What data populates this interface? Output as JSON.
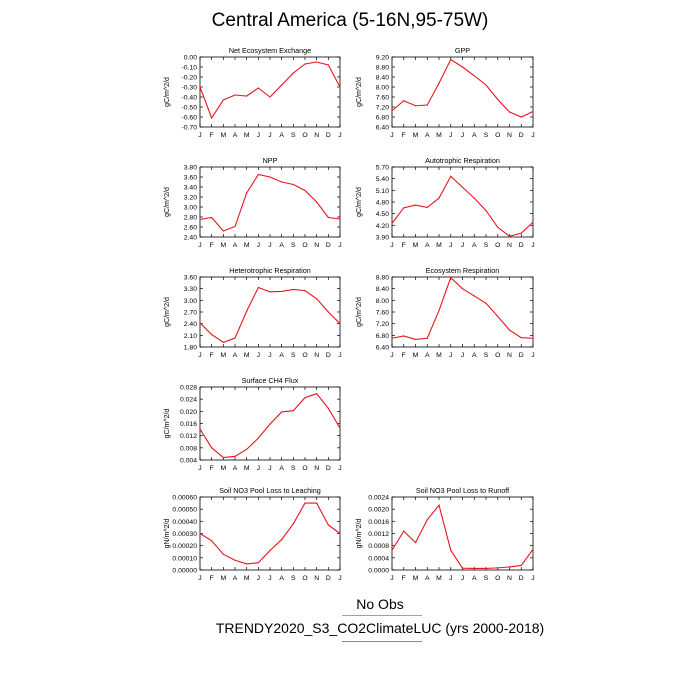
{
  "page_title": "Central America (5-16N,95-75W)",
  "months": [
    "J",
    "F",
    "M",
    "A",
    "M",
    "J",
    "J",
    "A",
    "S",
    "O",
    "N",
    "D",
    "J"
  ],
  "line_color": "#e8141e",
  "legend": {
    "obs_label": "No Obs",
    "model_label": "TRENDY2020_S3_CO2ClimateLUC (yrs 2000-2018)",
    "obs_color": "#8aa0d8",
    "model_color": "#e06a6a"
  },
  "chart_data": [
    {
      "type": "line",
      "title": "Net Ecosystem Exchange",
      "ylabel": "gC/m^2/d",
      "ylim": [
        -0.7,
        0.0
      ],
      "yticks": [
        0.0,
        -0.1,
        -0.2,
        -0.3,
        -0.4,
        -0.5,
        -0.6,
        -0.7
      ],
      "ytick_labels": [
        "0.00",
        "-0.10",
        "-0.20",
        "-0.30",
        "-0.40",
        "-0.50",
        "-0.60",
        "-0.70"
      ],
      "values": [
        -0.3,
        -0.61,
        -0.43,
        -0.38,
        -0.39,
        -0.31,
        -0.4,
        -0.28,
        -0.16,
        -0.07,
        -0.05,
        -0.08,
        -0.3
      ]
    },
    {
      "type": "line",
      "title": "GPP",
      "ylabel": "gC/m^2/d",
      "ylim": [
        6.4,
        9.2
      ],
      "yticks": [
        9.2,
        8.8,
        8.4,
        8.0,
        7.6,
        7.2,
        6.8,
        6.4
      ],
      "ytick_labels": [
        "9.20",
        "8.80",
        "8.40",
        "8.00",
        "7.60",
        "7.20",
        "6.80",
        "6.40"
      ],
      "values": [
        7.05,
        7.45,
        7.25,
        7.28,
        8.15,
        9.1,
        8.8,
        8.45,
        8.08,
        7.5,
        7.0,
        6.8,
        7.02
      ]
    },
    {
      "type": "line",
      "title": "NPP",
      "ylabel": "gC/m^2/d",
      "ylim": [
        2.4,
        3.8
      ],
      "yticks": [
        3.8,
        3.6,
        3.4,
        3.2,
        3.0,
        2.8,
        2.6,
        2.4
      ],
      "ytick_labels": [
        "3.80",
        "3.60",
        "3.40",
        "3.20",
        "3.00",
        "2.80",
        "2.60",
        "2.40"
      ],
      "values": [
        2.75,
        2.79,
        2.52,
        2.61,
        3.28,
        3.65,
        3.6,
        3.5,
        3.45,
        3.33,
        3.1,
        2.79,
        2.76
      ]
    },
    {
      "type": "line",
      "title": "Autotrophic Respiration",
      "ylabel": "gC/m^2/d",
      "ylim": [
        3.9,
        5.7
      ],
      "yticks": [
        5.7,
        5.4,
        5.1,
        4.8,
        4.5,
        4.2,
        3.9
      ],
      "ytick_labels": [
        "5.70",
        "5.40",
        "5.10",
        "4.80",
        "4.50",
        "4.20",
        "3.90"
      ],
      "values": [
        4.25,
        4.65,
        4.72,
        4.66,
        4.9,
        5.46,
        5.18,
        4.9,
        4.58,
        4.15,
        3.92,
        4.0,
        4.28
      ]
    },
    {
      "type": "line",
      "title": "Heterotrophic Respiration",
      "ylabel": "gC/m^2/d",
      "ylim": [
        1.8,
        3.6
      ],
      "yticks": [
        3.6,
        3.3,
        3.0,
        2.7,
        2.4,
        2.1,
        1.8
      ],
      "ytick_labels": [
        "3.60",
        "3.30",
        "3.00",
        "2.70",
        "2.40",
        "2.10",
        "1.80"
      ],
      "values": [
        2.42,
        2.12,
        1.92,
        2.03,
        2.72,
        3.33,
        3.22,
        3.23,
        3.28,
        3.25,
        3.04,
        2.7,
        2.4
      ]
    },
    {
      "type": "line",
      "title": "Ecosystem Respiration",
      "ylabel": "gC/m^2/d",
      "ylim": [
        6.4,
        8.8
      ],
      "yticks": [
        8.8,
        8.4,
        8.0,
        7.6,
        7.2,
        6.8,
        6.4
      ],
      "ytick_labels": [
        "8.80",
        "8.40",
        "8.00",
        "7.60",
        "7.20",
        "6.80",
        "6.40"
      ],
      "values": [
        6.7,
        6.78,
        6.66,
        6.7,
        7.65,
        8.78,
        8.4,
        8.15,
        7.9,
        7.45,
        6.98,
        6.72,
        6.7
      ]
    },
    {
      "type": "line",
      "title": "Surface CH4 Flux",
      "ylabel": "gC/m^2/d",
      "ylim": [
        0.004,
        0.028
      ],
      "yticks": [
        0.028,
        0.024,
        0.02,
        0.016,
        0.012,
        0.008,
        0.004
      ],
      "ytick_labels": [
        "0.028",
        "0.024",
        "0.020",
        "0.016",
        "0.012",
        "0.008",
        "0.004"
      ],
      "values": [
        0.0142,
        0.008,
        0.0048,
        0.0052,
        0.0075,
        0.0112,
        0.0158,
        0.0198,
        0.0202,
        0.0245,
        0.0258,
        0.021,
        0.0145
      ]
    },
    {
      "type": "line",
      "title": "Soil NO3 Pool Loss to Leaching",
      "ylabel": "gN/m^2/d",
      "ylim": [
        0.0,
        0.0006
      ],
      "yticks": [
        0.0006,
        0.0005,
        0.0004,
        0.0003,
        0.0002,
        0.0001,
        0.0
      ],
      "ytick_labels": [
        "0.00060",
        "0.00050",
        "0.00040",
        "0.00030",
        "0.00020",
        "0.00010",
        "0.00000"
      ],
      "values": [
        0.0003,
        0.00024,
        0.00013,
        8e-05,
        5e-05,
        6e-05,
        0.00016,
        0.00025,
        0.00038,
        0.00055,
        0.00055,
        0.00037,
        0.0003
      ]
    },
    {
      "type": "line",
      "title": "Soil NO3 Pool Loss to Runoff",
      "ylabel": "gN/m^2/d",
      "ylim": [
        0.0,
        0.0024
      ],
      "yticks": [
        0.0024,
        0.002,
        0.0016,
        0.0012,
        0.0008,
        0.0004,
        0.0
      ],
      "ytick_labels": [
        "0.0024",
        "0.0020",
        "0.0016",
        "0.0012",
        "0.0008",
        "0.0004",
        "0.0000"
      ],
      "values": [
        0.00065,
        0.00128,
        0.0009,
        0.00165,
        0.00213,
        0.00065,
        6e-05,
        5e-05,
        5e-05,
        7e-05,
        0.0001,
        0.00015,
        0.00068
      ]
    }
  ]
}
